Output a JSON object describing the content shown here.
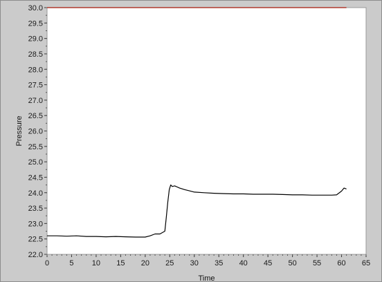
{
  "chart_data": {
    "type": "line",
    "title": "",
    "xlabel": "Time",
    "ylabel": "Pressure",
    "xlim": [
      0,
      65
    ],
    "ylim": [
      22.0,
      30.0
    ],
    "x_ticks": [
      0,
      5,
      10,
      15,
      20,
      25,
      30,
      35,
      40,
      45,
      50,
      55,
      60,
      65
    ],
    "y_ticks": [
      22.0,
      22.5,
      23.0,
      23.5,
      24.0,
      24.5,
      25.0,
      25.5,
      26.0,
      26.5,
      27.0,
      27.5,
      28.0,
      28.5,
      29.0,
      29.5,
      30.0
    ],
    "grid": false,
    "legend": "none",
    "series": [
      {
        "color": "#000000",
        "x": [
          0,
          2,
          4,
          6,
          8,
          10,
          12,
          14,
          16,
          18,
          20,
          21,
          22,
          23,
          24,
          24.3,
          24.6,
          24.9,
          25.2,
          25.5,
          26,
          27,
          28,
          29,
          30,
          32,
          34,
          36,
          38,
          40,
          42,
          44,
          46,
          48,
          50,
          52,
          54,
          56,
          58,
          59,
          60,
          60.5,
          61
        ],
        "y": [
          22.6,
          22.6,
          22.59,
          22.6,
          22.58,
          22.58,
          22.57,
          22.58,
          22.57,
          22.56,
          22.56,
          22.6,
          22.66,
          22.66,
          22.75,
          23.2,
          23.7,
          24.1,
          24.25,
          24.2,
          24.22,
          24.15,
          24.1,
          24.06,
          24.02,
          24.0,
          23.98,
          23.97,
          23.96,
          23.96,
          23.95,
          23.95,
          23.95,
          23.94,
          23.93,
          23.93,
          23.92,
          23.92,
          23.92,
          23.93,
          24.05,
          24.15,
          24.12
        ]
      },
      {
        "color": "#b03a2e",
        "x": [
          0,
          61
        ],
        "y": [
          30.0,
          30.0
        ]
      }
    ]
  }
}
